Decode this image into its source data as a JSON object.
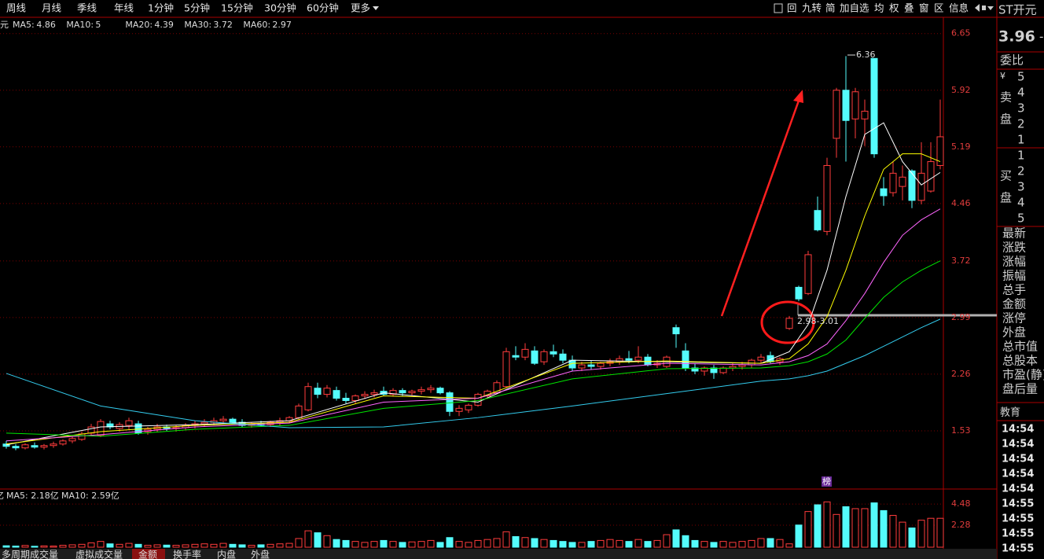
{
  "toolbar": {
    "periods": [
      "周线",
      "月线",
      "季线",
      "年线",
      "1分钟",
      "5分钟",
      "15分钟",
      "30分钟",
      "60分钟",
      "更多"
    ],
    "tools": [
      "回",
      "九转",
      "简",
      "加自选",
      "均",
      "权",
      "叠",
      "窗",
      "区",
      "信息"
    ]
  },
  "quote": {
    "name": "ST开元",
    "price": "3.96",
    "change": "-"
  },
  "chart_data": {
    "type": "candlestick",
    "legend_prefix": "元",
    "ylim": [
      0.8,
      6.86
    ],
    "yticks": [
      6.65,
      5.92,
      5.19,
      4.46,
      3.72,
      2.99,
      2.26,
      1.53
    ],
    "grid": true,
    "up_color": "#ff3c3c",
    "down_color": "#54fcfc",
    "ohlc": [
      [
        1.36,
        1.4,
        1.3,
        1.33
      ],
      [
        1.33,
        1.36,
        1.28,
        1.31
      ],
      [
        1.31,
        1.37,
        1.29,
        1.35
      ],
      [
        1.34,
        1.38,
        1.3,
        1.32
      ],
      [
        1.32,
        1.36,
        1.29,
        1.34
      ],
      [
        1.34,
        1.39,
        1.31,
        1.36
      ],
      [
        1.36,
        1.42,
        1.34,
        1.4
      ],
      [
        1.4,
        1.46,
        1.37,
        1.43
      ],
      [
        1.42,
        1.52,
        1.4,
        1.49
      ],
      [
        1.5,
        1.62,
        1.47,
        1.58
      ],
      [
        1.47,
        1.68,
        1.45,
        1.65
      ],
      [
        1.62,
        1.66,
        1.55,
        1.58
      ],
      [
        1.56,
        1.64,
        1.52,
        1.61
      ],
      [
        1.6,
        1.7,
        1.55,
        1.66
      ],
      [
        1.62,
        1.66,
        1.48,
        1.5
      ],
      [
        1.52,
        1.58,
        1.48,
        1.55
      ],
      [
        1.55,
        1.62,
        1.52,
        1.58
      ],
      [
        1.58,
        1.61,
        1.53,
        1.56
      ],
      [
        1.56,
        1.6,
        1.52,
        1.57
      ],
      [
        1.57,
        1.63,
        1.54,
        1.6
      ],
      [
        1.6,
        1.66,
        1.56,
        1.62
      ],
      [
        1.62,
        1.68,
        1.58,
        1.64
      ],
      [
        1.64,
        1.7,
        1.6,
        1.66
      ],
      [
        1.66,
        1.72,
        1.62,
        1.68
      ],
      [
        1.68,
        1.7,
        1.62,
        1.64
      ],
      [
        1.64,
        1.68,
        1.58,
        1.6
      ],
      [
        1.6,
        1.64,
        1.57,
        1.62
      ],
      [
        1.62,
        1.66,
        1.58,
        1.61
      ],
      [
        1.61,
        1.66,
        1.58,
        1.64
      ],
      [
        1.64,
        1.7,
        1.6,
        1.66
      ],
      [
        1.66,
        1.72,
        1.63,
        1.7
      ],
      [
        1.7,
        1.88,
        1.68,
        1.85
      ],
      [
        1.8,
        2.15,
        1.78,
        2.1
      ],
      [
        2.08,
        2.15,
        1.95,
        2.0
      ],
      [
        2.0,
        2.12,
        1.96,
        2.08
      ],
      [
        2.05,
        2.1,
        1.92,
        1.95
      ],
      [
        1.95,
        2.02,
        1.88,
        1.92
      ],
      [
        1.92,
        2.0,
        1.88,
        1.98
      ],
      [
        1.98,
        2.04,
        1.94,
        2.0
      ],
      [
        2.0,
        2.06,
        1.96,
        2.02
      ],
      [
        2.04,
        2.1,
        1.98,
        2.0
      ],
      [
        2.0,
        2.08,
        1.97,
        2.05
      ],
      [
        2.05,
        2.08,
        1.98,
        2.02
      ],
      [
        2.02,
        2.06,
        1.98,
        2.04
      ],
      [
        2.04,
        2.1,
        2.0,
        2.06
      ],
      [
        2.06,
        2.12,
        2.02,
        2.08
      ],
      [
        2.08,
        2.1,
        2.0,
        2.02
      ],
      [
        2.02,
        2.04,
        1.72,
        1.78
      ],
      [
        1.78,
        1.86,
        1.72,
        1.82
      ],
      [
        1.8,
        1.88,
        1.76,
        1.86
      ],
      [
        1.86,
        2.02,
        1.84,
        2.0
      ],
      [
        1.98,
        2.06,
        1.94,
        2.04
      ],
      [
        2.02,
        2.18,
        2.0,
        2.15
      ],
      [
        2.1,
        2.6,
        2.08,
        2.55
      ],
      [
        2.5,
        2.62,
        2.44,
        2.48
      ],
      [
        2.48,
        2.66,
        2.44,
        2.58
      ],
      [
        2.56,
        2.62,
        2.38,
        2.4
      ],
      [
        2.42,
        2.58,
        2.38,
        2.55
      ],
      [
        2.55,
        2.64,
        2.48,
        2.52
      ],
      [
        2.52,
        2.58,
        2.4,
        2.44
      ],
      [
        2.44,
        2.5,
        2.3,
        2.34
      ],
      [
        2.34,
        2.42,
        2.3,
        2.38
      ],
      [
        2.38,
        2.44,
        2.32,
        2.36
      ],
      [
        2.36,
        2.42,
        2.32,
        2.4
      ],
      [
        2.4,
        2.46,
        2.36,
        2.42
      ],
      [
        2.42,
        2.5,
        2.38,
        2.46
      ],
      [
        2.46,
        2.56,
        2.4,
        2.44
      ],
      [
        2.44,
        2.62,
        2.4,
        2.48
      ],
      [
        2.48,
        2.52,
        2.36,
        2.38
      ],
      [
        2.38,
        2.44,
        2.34,
        2.4
      ],
      [
        2.36,
        2.5,
        2.34,
        2.48
      ],
      [
        2.86,
        2.9,
        2.6,
        2.78
      ],
      [
        2.56,
        2.66,
        2.3,
        2.34
      ],
      [
        2.34,
        2.4,
        2.26,
        2.3
      ],
      [
        2.3,
        2.36,
        2.24,
        2.34
      ],
      [
        2.34,
        2.38,
        2.2,
        2.28
      ],
      [
        2.28,
        2.36,
        2.26,
        2.34
      ],
      [
        2.34,
        2.4,
        2.3,
        2.36
      ],
      [
        2.36,
        2.42,
        2.32,
        2.38
      ],
      [
        2.38,
        2.46,
        2.34,
        2.44
      ],
      [
        2.44,
        2.52,
        2.4,
        2.48
      ],
      [
        2.5,
        2.55,
        2.4,
        2.42
      ],
      [
        2.42,
        2.48,
        2.38,
        2.46
      ],
      [
        2.85,
        3.01,
        2.83,
        2.98
      ],
      [
        3.38,
        3.4,
        3.2,
        3.23
      ],
      [
        3.3,
        3.85,
        3.28,
        3.8
      ],
      [
        4.37,
        4.55,
        4.1,
        4.12
      ],
      [
        4.1,
        5.05,
        4.05,
        4.95
      ],
      [
        5.3,
        5.95,
        5.05,
        5.92
      ],
      [
        5.92,
        6.36,
        5.0,
        5.53
      ],
      [
        5.55,
        5.95,
        5.3,
        5.9
      ],
      [
        5.55,
        5.8,
        5.2,
        5.65
      ],
      [
        6.33,
        6.33,
        5.05,
        5.1
      ],
      [
        4.65,
        4.8,
        4.43,
        4.56
      ],
      [
        4.6,
        5.0,
        4.55,
        4.85
      ],
      [
        4.68,
        4.95,
        4.5,
        4.8
      ],
      [
        4.88,
        4.9,
        4.4,
        4.5
      ],
      [
        4.5,
        5.25,
        4.45,
        4.85
      ],
      [
        4.62,
        5.25,
        4.6,
        5.0
      ],
      [
        4.95,
        5.8,
        4.9,
        5.32
      ]
    ],
    "ma_x": [
      0,
      10,
      20,
      30,
      40,
      50,
      60,
      70,
      80,
      83,
      85,
      87,
      89,
      91,
      93,
      95,
      97,
      99
    ],
    "ma": [
      {
        "label": "MA5:",
        "value": 4.86,
        "color": "#ffffff",
        "values": [
          1.35,
          1.58,
          1.61,
          1.66,
          2.02,
          1.9,
          2.44,
          2.42,
          2.4,
          2.55,
          2.9,
          3.6,
          4.55,
          5.35,
          5.5,
          5.0,
          4.7,
          4.86
        ]
      },
      {
        "label": "MA10:",
        "value": 5.0,
        "color": "#ffff00",
        "values": [
          1.36,
          1.52,
          1.6,
          1.64,
          1.98,
          1.95,
          2.4,
          2.43,
          2.4,
          2.46,
          2.65,
          3.0,
          3.6,
          4.3,
          4.9,
          5.1,
          5.1,
          5.0
        ]
      },
      {
        "label": "MA20:",
        "value": 4.39,
        "color": "#ff66ff",
        "values": [
          1.4,
          1.48,
          1.58,
          1.63,
          1.9,
          1.95,
          2.3,
          2.4,
          2.38,
          2.42,
          2.5,
          2.65,
          2.95,
          3.3,
          3.7,
          4.05,
          4.25,
          4.39
        ]
      },
      {
        "label": "MA30:",
        "value": 3.72,
        "color": "#00e600",
        "values": [
          1.5,
          1.46,
          1.55,
          1.6,
          1.82,
          1.92,
          2.2,
          2.33,
          2.34,
          2.37,
          2.42,
          2.52,
          2.7,
          2.98,
          3.25,
          3.45,
          3.6,
          3.72
        ]
      },
      {
        "label": "MA60:",
        "value": 2.97,
        "color": "#33ccee",
        "values": [
          2.27,
          1.85,
          1.66,
          1.57,
          1.58,
          1.7,
          1.85,
          2.01,
          2.17,
          2.2,
          2.24,
          2.3,
          2.4,
          2.5,
          2.62,
          2.74,
          2.86,
          2.97
        ]
      }
    ],
    "annotations": [
      "6.36",
      "2.98-3.01"
    ],
    "marker": "榜",
    "volume": {
      "legend_prefix": "亿",
      "legend": [
        "MA5: 2.18亿",
        "MA10: 2.59亿"
      ],
      "ylim": [
        0,
        5.79
      ],
      "yticks": [
        4.48,
        2.28
      ],
      "values": [
        0.15,
        0.12,
        0.18,
        0.1,
        0.14,
        0.12,
        0.2,
        0.25,
        0.3,
        0.45,
        0.6,
        0.35,
        0.3,
        0.4,
        0.3,
        0.2,
        0.25,
        0.22,
        0.2,
        0.25,
        0.3,
        0.35,
        0.3,
        0.4,
        0.3,
        0.25,
        0.2,
        0.25,
        0.3,
        0.35,
        0.4,
        0.9,
        1.7,
        1.5,
        1.2,
        0.8,
        0.7,
        0.6,
        0.5,
        0.6,
        0.7,
        0.6,
        0.5,
        0.55,
        0.6,
        0.7,
        0.5,
        1.0,
        0.6,
        0.5,
        0.7,
        0.8,
        0.9,
        1.6,
        1.1,
        1.0,
        0.9,
        0.8,
        0.7,
        0.6,
        0.5,
        0.5,
        0.6,
        0.7,
        0.8,
        0.7,
        0.6,
        0.8,
        0.6,
        0.7,
        1.3,
        1.8,
        1.2,
        0.7,
        0.6,
        0.5,
        0.6,
        0.5,
        0.6,
        0.7,
        0.9,
        0.9,
        0.8,
        0.35,
        2.3,
        3.7,
        4.4,
        4.7,
        3.4,
        4.2,
        4.0,
        4.0,
        4.6,
        3.8,
        3.3,
        2.6,
        2.0,
        2.8,
        3.0,
        3.0
      ]
    }
  },
  "side": {
    "weibi": "委比",
    "currency": "¥",
    "sell_label": [
      "卖",
      "盘"
    ],
    "sell_levels": [
      5,
      4,
      3,
      2,
      1
    ],
    "buy_label": [
      "买",
      "盘"
    ],
    "buy_levels": [
      1,
      2,
      3,
      4,
      5
    ],
    "fields": [
      "最新",
      "涨跌",
      "涨幅",
      "振幅",
      "总手",
      "金额",
      "涨停",
      "外盘",
      "总市值",
      "总股本",
      "市盈(静)",
      "盘后量"
    ],
    "education": "教育",
    "times": [
      "14:54",
      "14:54",
      "14:54",
      "14:54",
      "14:54",
      "14:55",
      "14:55",
      "14:55",
      "14:55"
    ]
  },
  "bottom_tabs": [
    "多周期成交量",
    "虚拟成交量",
    "金额",
    "换手率",
    "内盘",
    "外盘"
  ]
}
